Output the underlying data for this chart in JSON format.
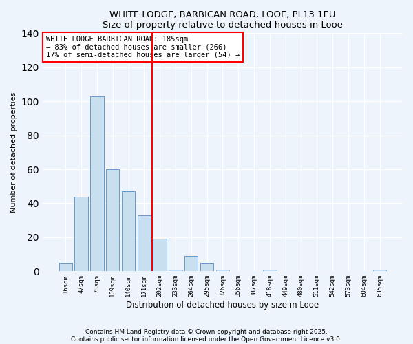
{
  "title1": "WHITE LODGE, BARBICAN ROAD, LOOE, PL13 1EU",
  "title2": "Size of property relative to detached houses in Looe",
  "xlabel": "Distribution of detached houses by size in Looe",
  "ylabel": "Number of detached properties",
  "categories": [
    "16sqm",
    "47sqm",
    "78sqm",
    "109sqm",
    "140sqm",
    "171sqm",
    "202sqm",
    "233sqm",
    "264sqm",
    "295sqm",
    "326sqm",
    "356sqm",
    "387sqm",
    "418sqm",
    "449sqm",
    "480sqm",
    "511sqm",
    "542sqm",
    "573sqm",
    "604sqm",
    "635sqm"
  ],
  "values": [
    5,
    44,
    103,
    60,
    47,
    33,
    19,
    1,
    9,
    5,
    1,
    0,
    0,
    1,
    0,
    0,
    0,
    0,
    0,
    0,
    1
  ],
  "bar_color": "#c8dff0",
  "bar_edge_color": "#6699cc",
  "vline_x": 5.5,
  "vline_color": "red",
  "ylim": [
    0,
    140
  ],
  "annotation_line1": "WHITE LODGE BARBICAN ROAD: 185sqm",
  "annotation_line2": "← 83% of detached houses are smaller (266)",
  "annotation_line3": "17% of semi-detached houses are larger (54) →",
  "footer1": "Contains HM Land Registry data © Crown copyright and database right 2025.",
  "footer2": "Contains public sector information licensed under the Open Government Licence v3.0.",
  "background_color": "#eef4fb",
  "grid_color": "#ffffff",
  "title_fontsize": 9.5,
  "ylabel_fontsize": 8,
  "xlabel_fontsize": 8.5,
  "tick_fontsize": 6.5,
  "ann_fontsize": 7.5,
  "footer_fontsize": 6.5
}
